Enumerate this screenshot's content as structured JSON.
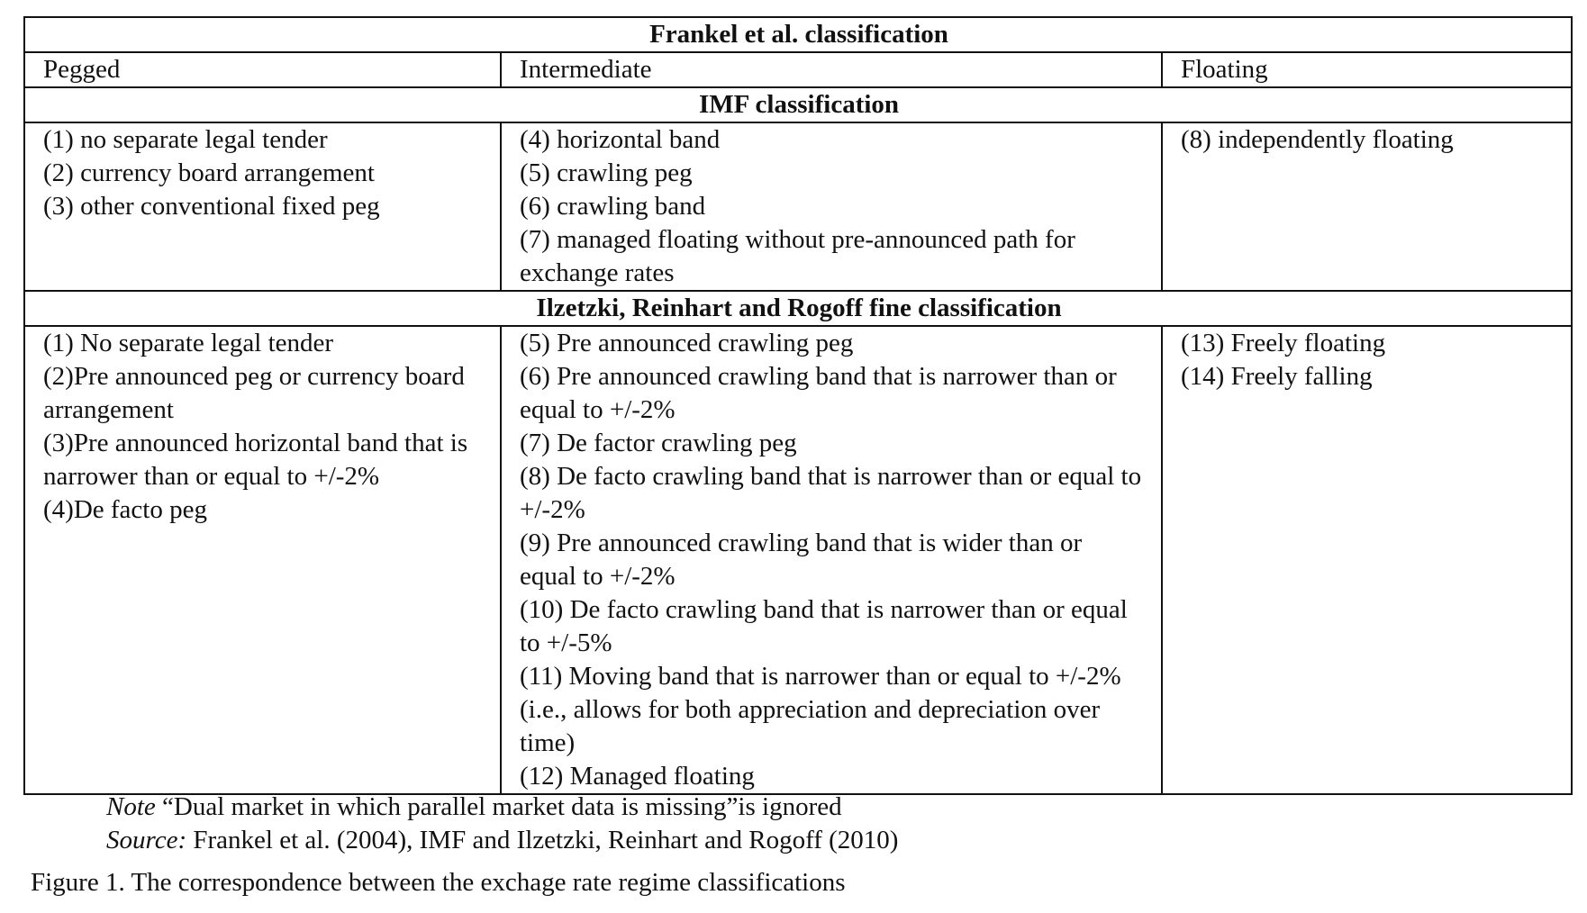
{
  "frankel": {
    "title": "Frankel et al. classification",
    "columns": [
      "Pegged",
      "Intermediate",
      "Floating"
    ]
  },
  "imf": {
    "title": "IMF classification",
    "pegged": [
      "(1) no separate legal tender",
      "(2) currency board arrangement",
      "(3) other conventional fixed peg"
    ],
    "intermediate": [
      "(4) horizontal band",
      "(5) crawling peg",
      "(6) crawling band",
      "(7) managed floating without pre-announced path for exchange rates"
    ],
    "floating": [
      "(8) independently floating"
    ]
  },
  "irr": {
    "title": "Ilzetzki, Reinhart and Rogoff fine classification",
    "pegged": [
      "(1) No separate legal tender",
      "(2)Pre announced peg or currency board arrangement",
      "(3)Pre announced horizontal band that is narrower than or equal to +/-2%",
      "(4)De facto peg"
    ],
    "intermediate": [
      "(5) Pre announced crawling peg",
      "(6) Pre announced crawling band that is narrower than or equal to +/-2%",
      "(7) De factor crawling peg",
      "(8) De facto crawling band that is narrower than or equal to +/-2%",
      "(9) Pre announced crawling band that is wider than or equal to +/-2%",
      "(10) De facto crawling band that is narrower than or equal to +/-5%",
      "(11) Moving band that is narrower than or equal to +/-2% (i.e., allows for both appreciation and depreciation over time)",
      "(12) Managed floating"
    ],
    "floating": [
      "(13) Freely floating",
      "(14) Freely falling"
    ]
  },
  "notes": {
    "note_lead": "Note",
    "note_text": " “Dual market in which parallel market data is missing”is ignored",
    "source_lead": "Source:",
    "source_text": " Frankel et al. (2004),  IMF and Ilzetzki, Reinhart and Rogoff (2010)"
  },
  "caption": "Figure 1. The correspondence between the exchage rate regime classifications"
}
